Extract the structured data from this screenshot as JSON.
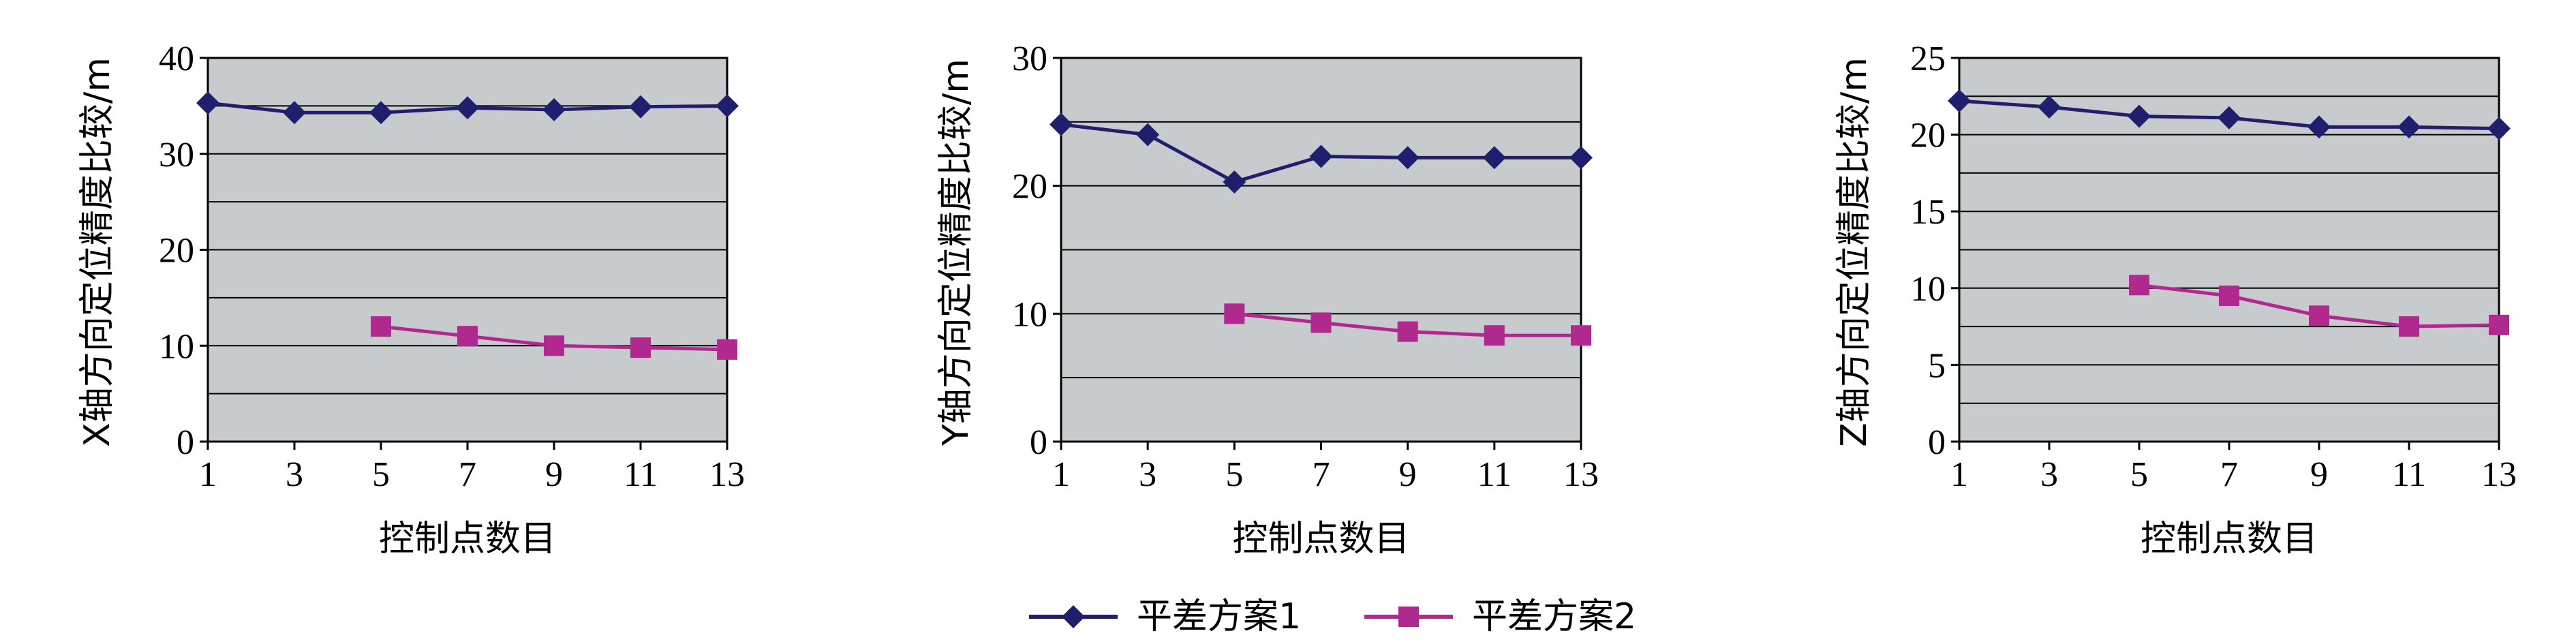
{
  "chart_data": [
    {
      "type": "line",
      "categories": [
        "1",
        "3",
        "5",
        "7",
        "9",
        "11",
        "13"
      ],
      "xlabel": "控制点数目",
      "ylabel": "X轴方向定位精度比较/m",
      "ylabel_axis_letter": "X",
      "ylim": [
        0,
        40
      ],
      "yticks": [
        0,
        10,
        20,
        30,
        40
      ],
      "grid": true,
      "series": [
        {
          "name": "平差方案1",
          "values": [
            35.3,
            34.3,
            34.3,
            34.8,
            34.6,
            34.9,
            35.0
          ]
        },
        {
          "name": "平差方案2",
          "values": [
            null,
            null,
            12.0,
            11.0,
            10.0,
            9.8,
            9.6
          ]
        }
      ]
    },
    {
      "type": "line",
      "categories": [
        "1",
        "3",
        "5",
        "7",
        "9",
        "11",
        "13"
      ],
      "xlabel": "控制点数目",
      "ylabel": "Y轴方向定位精度比较/m",
      "ylabel_axis_letter": "Y",
      "ylim": [
        0,
        30
      ],
      "yticks": [
        0,
        10,
        20,
        30
      ],
      "grid": true,
      "series": [
        {
          "name": "平差方案1",
          "values": [
            24.8,
            24.0,
            20.3,
            22.3,
            22.2,
            22.2,
            22.2
          ]
        },
        {
          "name": "平差方案2",
          "values": [
            null,
            null,
            10.0,
            9.3,
            8.6,
            8.3,
            8.3
          ]
        }
      ]
    },
    {
      "type": "line",
      "categories": [
        "1",
        "3",
        "5",
        "7",
        "9",
        "11",
        "13"
      ],
      "xlabel": "控制点数目",
      "ylabel": "Z轴方向定位精度比较/m",
      "ylabel_axis_letter": "Z",
      "ylim": [
        0,
        25
      ],
      "yticks": [
        0,
        5,
        10,
        15,
        20,
        25
      ],
      "grid": true,
      "series": [
        {
          "name": "平差方案1",
          "values": [
            22.2,
            21.8,
            21.2,
            21.1,
            20.5,
            20.5,
            20.4
          ]
        },
        {
          "name": "平差方案2",
          "values": [
            null,
            null,
            10.2,
            9.5,
            8.2,
            7.5,
            7.6
          ]
        }
      ]
    }
  ],
  "legend": {
    "placement": "bottom-center",
    "items": [
      {
        "label": "平差方案1",
        "marker": "diamond",
        "color": "#1f1f6e"
      },
      {
        "label": "平差方案2",
        "marker": "square",
        "color": "#b0298f"
      }
    ]
  },
  "colors": {
    "plot_background": "#c8cbcd",
    "series1": "#1f1f6e",
    "series2": "#b0298f",
    "gridline": "#000000"
  }
}
